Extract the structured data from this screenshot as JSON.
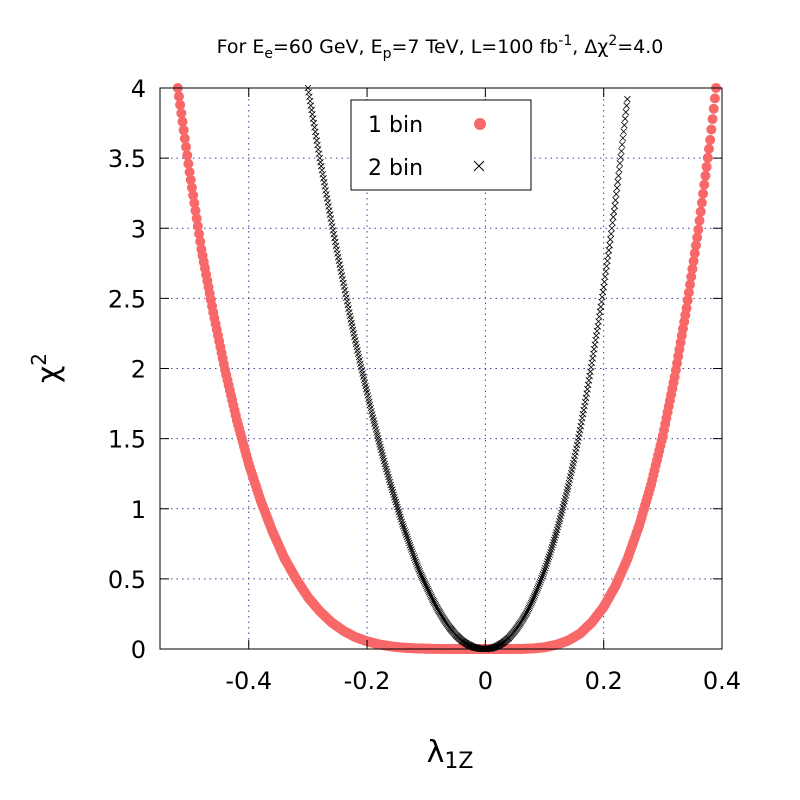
{
  "chart_data": {
    "type": "scatter",
    "title": {
      "parts": [
        "For E",
        "e",
        "=60 GeV, E",
        "p",
        "=7 TeV, L=100 fb",
        "-1",
        ", Δχ",
        "2",
        "=4.0"
      ]
    },
    "xlabel": {
      "base": "λ",
      "sub": "1Z"
    },
    "ylabel": {
      "base": "χ",
      "sup": "2"
    },
    "xlim": [
      -0.55,
      0.4
    ],
    "ylim": [
      0,
      4
    ],
    "xticks": [
      {
        "v": -0.4,
        "label": "-0.4"
      },
      {
        "v": -0.2,
        "label": "-0.2"
      },
      {
        "v": 0,
        "label": "0"
      },
      {
        "v": 0.2,
        "label": "0.2"
      },
      {
        "v": 0.4,
        "label": "0.4"
      }
    ],
    "yticks": [
      {
        "v": 0,
        "label": "0"
      },
      {
        "v": 0.5,
        "label": "0.5"
      },
      {
        "v": 1,
        "label": "1"
      },
      {
        "v": 1.5,
        "label": "1.5"
      },
      {
        "v": 2,
        "label": "2"
      },
      {
        "v": 2.5,
        "label": "2.5"
      },
      {
        "v": 3,
        "label": "3"
      },
      {
        "v": 3.5,
        "label": "3.5"
      },
      {
        "v": 4,
        "label": "4"
      }
    ],
    "grid": true,
    "legend_position": "top-center",
    "series": [
      {
        "name": "1 bin",
        "marker": "filled-circle",
        "color": "#f86868",
        "points": [
          [
            -0.52,
            4.0
          ],
          [
            -0.5,
            3.4
          ],
          [
            -0.48,
            2.85
          ],
          [
            -0.46,
            2.4
          ],
          [
            -0.44,
            1.99
          ],
          [
            -0.42,
            1.63
          ],
          [
            -0.4,
            1.32
          ],
          [
            -0.38,
            1.06
          ],
          [
            -0.36,
            0.84
          ],
          [
            -0.34,
            0.65
          ],
          [
            -0.32,
            0.5
          ],
          [
            -0.3,
            0.37
          ],
          [
            -0.28,
            0.27
          ],
          [
            -0.26,
            0.19
          ],
          [
            -0.24,
            0.13
          ],
          [
            -0.22,
            0.085
          ],
          [
            -0.2,
            0.055
          ],
          [
            -0.18,
            0.033
          ],
          [
            -0.16,
            0.019
          ],
          [
            -0.14,
            0.01
          ],
          [
            -0.12,
            0.005
          ],
          [
            -0.1,
            0.002
          ],
          [
            -0.08,
            0.0008
          ],
          [
            -0.06,
            0.0002
          ],
          [
            -0.04,
            0.0
          ],
          [
            -0.02,
            0.0
          ],
          [
            0.0,
            0.0
          ],
          [
            0.02,
            0.0
          ],
          [
            0.04,
            0.0002
          ],
          [
            0.06,
            0.001
          ],
          [
            0.08,
            0.004
          ],
          [
            0.1,
            0.012
          ],
          [
            0.12,
            0.03
          ],
          [
            0.14,
            0.06
          ],
          [
            0.16,
            0.11
          ],
          [
            0.18,
            0.19
          ],
          [
            0.2,
            0.3
          ],
          [
            0.22,
            0.45
          ],
          [
            0.24,
            0.64
          ],
          [
            0.26,
            0.88
          ],
          [
            0.28,
            1.17
          ],
          [
            0.3,
            1.52
          ],
          [
            0.32,
            1.94
          ],
          [
            0.34,
            2.43
          ],
          [
            0.36,
            2.99
          ],
          [
            0.38,
            3.63
          ],
          [
            0.39,
            4.0
          ]
        ]
      },
      {
        "name": "2 bin",
        "marker": "cross",
        "color": "#000000",
        "points": [
          [
            -0.3,
            4.0
          ],
          [
            -0.29,
            3.75
          ],
          [
            -0.28,
            3.5
          ],
          [
            -0.27,
            3.27
          ],
          [
            -0.26,
            3.04
          ],
          [
            -0.25,
            2.82
          ],
          [
            -0.24,
            2.61
          ],
          [
            -0.23,
            2.4
          ],
          [
            -0.22,
            2.2
          ],
          [
            -0.21,
            2.01
          ],
          [
            -0.2,
            1.83
          ],
          [
            -0.19,
            1.65
          ],
          [
            -0.18,
            1.48
          ],
          [
            -0.17,
            1.32
          ],
          [
            -0.16,
            1.17
          ],
          [
            -0.15,
            1.03
          ],
          [
            -0.14,
            0.89
          ],
          [
            -0.13,
            0.77
          ],
          [
            -0.12,
            0.65
          ],
          [
            -0.11,
            0.54
          ],
          [
            -0.1,
            0.45
          ],
          [
            -0.09,
            0.36
          ],
          [
            -0.08,
            0.28
          ],
          [
            -0.07,
            0.21
          ],
          [
            -0.06,
            0.15
          ],
          [
            -0.05,
            0.1
          ],
          [
            -0.04,
            0.06
          ],
          [
            -0.03,
            0.033
          ],
          [
            -0.02,
            0.013
          ],
          [
            -0.01,
            0.003
          ],
          [
            0.0,
            0.0
          ],
          [
            0.01,
            0.005
          ],
          [
            0.02,
            0.02
          ],
          [
            0.03,
            0.045
          ],
          [
            0.04,
            0.08
          ],
          [
            0.05,
            0.13
          ],
          [
            0.06,
            0.19
          ],
          [
            0.07,
            0.26
          ],
          [
            0.08,
            0.35
          ],
          [
            0.09,
            0.45
          ],
          [
            0.1,
            0.56
          ],
          [
            0.11,
            0.69
          ],
          [
            0.12,
            0.83
          ],
          [
            0.13,
            0.99
          ],
          [
            0.14,
            1.16
          ],
          [
            0.15,
            1.35
          ],
          [
            0.16,
            1.56
          ],
          [
            0.17,
            1.79
          ],
          [
            0.18,
            2.04
          ],
          [
            0.19,
            2.3
          ],
          [
            0.2,
            2.58
          ],
          [
            0.21,
            2.88
          ],
          [
            0.22,
            3.2
          ],
          [
            0.23,
            3.55
          ],
          [
            0.24,
            3.92
          ]
        ]
      }
    ]
  }
}
